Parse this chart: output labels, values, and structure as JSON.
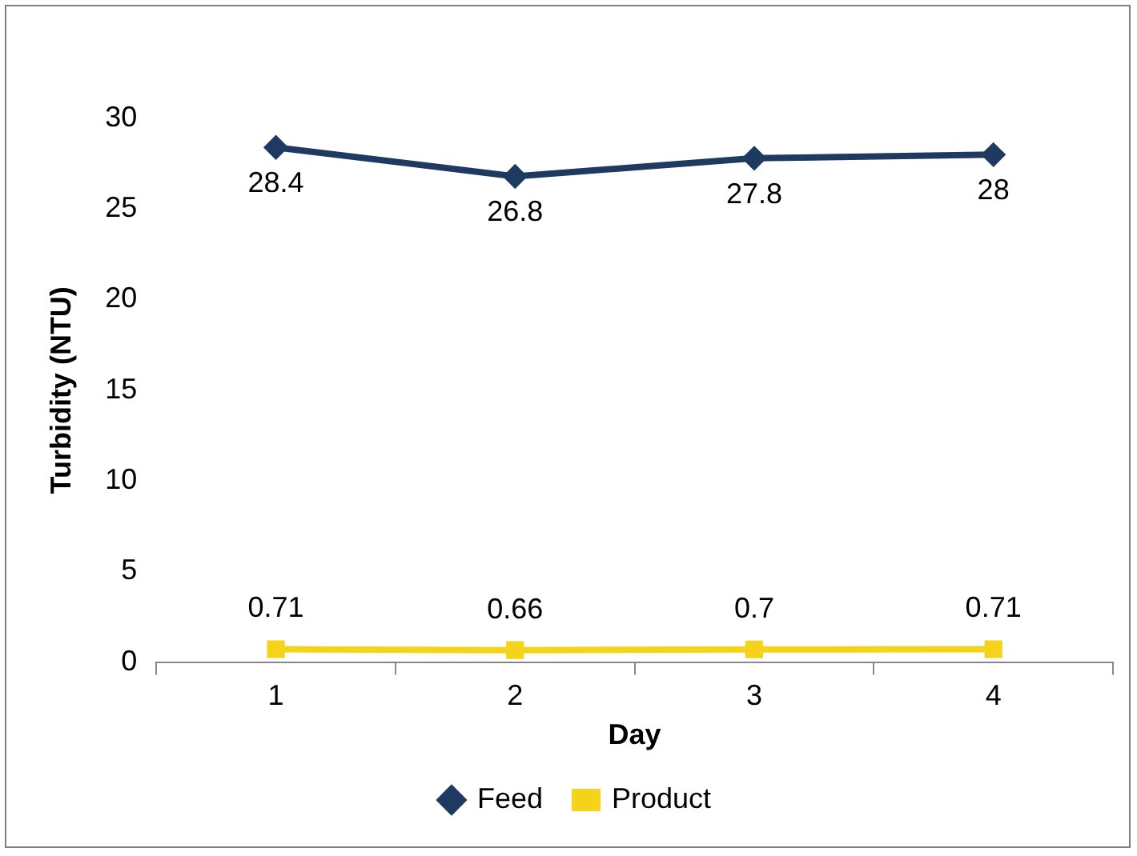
{
  "chart_data": {
    "type": "line",
    "xlabel": "Day",
    "ylabel": "Turbidity (NTU)",
    "categories": [
      "1",
      "2",
      "3",
      "4"
    ],
    "series": [
      {
        "name": "Feed",
        "color": "#1f3a60",
        "marker": "diamond",
        "values": [
          28.4,
          26.8,
          27.8,
          28
        ]
      },
      {
        "name": "Product",
        "color": "#f5d31a",
        "marker": "square",
        "values": [
          0.71,
          0.66,
          0.7,
          0.71
        ]
      }
    ],
    "ylim": [
      0,
      30
    ],
    "yticks": [
      0,
      5,
      10,
      15,
      20,
      25,
      30
    ],
    "grid": false,
    "legend": "bottom",
    "data_labels": true
  }
}
